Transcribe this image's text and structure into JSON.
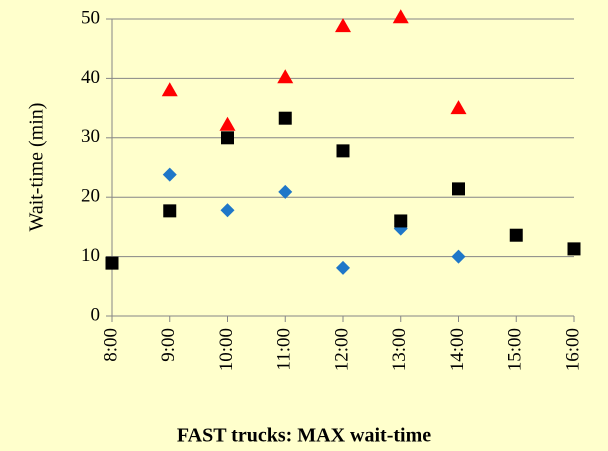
{
  "chart_data": {
    "type": "scatter",
    "title": "FAST trucks: MAX wait-time",
    "y_label": "Wait-time (min)",
    "categories": [
      "8:00",
      "9:00",
      "10:00",
      "11:00",
      "12:00",
      "13:00",
      "14:00",
      "15:00",
      "16:00"
    ],
    "series": [
      {
        "color": "#1f77c8",
        "marker": "diamond",
        "values": [
          null,
          23.8,
          17.8,
          20.9,
          8.1,
          14.7,
          10.0,
          null,
          null
        ]
      },
      {
        "color": "#ff0000",
        "marker": "triangle",
        "values": [
          null,
          38.0,
          32.2,
          40.2,
          48.8,
          50.3,
          35.0,
          null,
          null
        ]
      },
      {
        "color": "#000000",
        "marker": "square",
        "values": [
          8.9,
          17.7,
          30.0,
          33.3,
          27.8,
          16.0,
          21.4,
          13.6,
          11.3
        ]
      }
    ],
    "ylim": [
      0,
      50
    ],
    "yticks": [
      0,
      10,
      20,
      30,
      40,
      50
    ],
    "grid": true
  }
}
